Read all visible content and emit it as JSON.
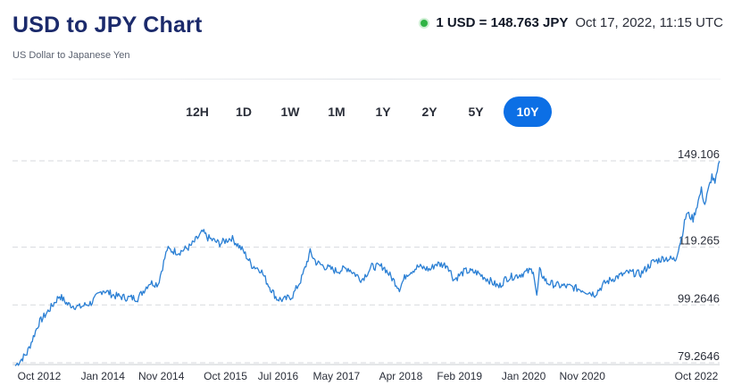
{
  "header": {
    "title": "USD to JPY Chart",
    "subtitle": "US Dollar to Japanese Yen",
    "rate": "1 USD = 148.763 JPY",
    "timestamp": "Oct 17, 2022, 11:15 UTC"
  },
  "ranges": {
    "options": [
      "12H",
      "1D",
      "1W",
      "1M",
      "1Y",
      "2Y",
      "5Y",
      "10Y"
    ],
    "selected": "10Y"
  },
  "colors": {
    "line": "#2a7fd4",
    "active_range": "#0c6fe5",
    "live_dot": "#2fb344",
    "title": "#1b2a6b"
  },
  "chart_data": {
    "type": "line",
    "title": "",
    "xlabel": "",
    "ylabel": "",
    "ylim": [
      79.2646,
      149.106
    ],
    "y_ticks": [
      {
        "value": 79.2646,
        "label": "79.2646"
      },
      {
        "value": 99.2646,
        "label": "99.2646"
      },
      {
        "value": 119.265,
        "label": "119.265"
      },
      {
        "value": 149.106,
        "label": "149.106"
      }
    ],
    "x_range": [
      "2012-10-01",
      "2022-10-17"
    ],
    "x_ticks": [
      {
        "date": "2012-10-01",
        "label": "Oct 2012"
      },
      {
        "date": "2014-01-01",
        "label": "Jan 2014"
      },
      {
        "date": "2014-11-01",
        "label": "Nov 2014"
      },
      {
        "date": "2015-10-01",
        "label": "Oct 2015"
      },
      {
        "date": "2016-07-01",
        "label": "Jul 2016"
      },
      {
        "date": "2017-05-01",
        "label": "May 2017"
      },
      {
        "date": "2018-04-01",
        "label": "Apr 2018"
      },
      {
        "date": "2019-02-01",
        "label": "Feb 2019"
      },
      {
        "date": "2020-01-01",
        "label": "Jan 2020"
      },
      {
        "date": "2020-11-01",
        "label": "Nov 2020"
      },
      {
        "date": "2022-10-01",
        "label": "Oct 2022"
      }
    ],
    "grid": true,
    "series": [
      {
        "x": [
          "2012-10-01",
          "2012-12-01",
          "2013-02-01",
          "2013-04-01",
          "2013-05-20",
          "2013-07-01",
          "2013-09-01",
          "2013-11-01",
          "2014-01-01",
          "2014-03-01",
          "2014-05-01",
          "2014-07-01",
          "2014-09-01",
          "2014-10-15",
          "2014-12-01",
          "2015-02-01",
          "2015-04-01",
          "2015-06-05",
          "2015-07-01",
          "2015-09-01",
          "2015-11-01",
          "2016-01-01",
          "2016-02-15",
          "2016-04-01",
          "2016-05-01",
          "2016-06-24",
          "2016-08-01",
          "2016-09-15",
          "2016-11-01",
          "2016-12-15",
          "2017-01-15",
          "2017-03-01",
          "2017-05-01",
          "2017-07-01",
          "2017-09-10",
          "2017-11-01",
          "2018-01-01",
          "2018-03-25",
          "2018-05-01",
          "2018-07-01",
          "2018-09-01",
          "2018-10-01",
          "2018-12-01",
          "2019-01-03",
          "2019-03-01",
          "2019-05-01",
          "2019-07-01",
          "2019-08-25",
          "2019-10-01",
          "2019-12-01",
          "2020-02-20",
          "2020-03-09",
          "2020-03-24",
          "2020-05-01",
          "2020-07-01",
          "2020-09-01",
          "2020-11-01",
          "2021-01-05",
          "2021-03-01",
          "2021-05-01",
          "2021-07-01",
          "2021-09-01",
          "2021-11-01",
          "2022-01-01",
          "2022-02-15",
          "2022-03-01",
          "2022-04-01",
          "2022-04-28",
          "2022-06-01",
          "2022-07-14",
          "2022-08-01",
          "2022-09-07",
          "2022-09-23",
          "2022-10-17"
        ],
        "y": [
          78.2,
          82.5,
          93.0,
          98.0,
          102.5,
          99.5,
          98.5,
          100.0,
          104.5,
          102.5,
          101.8,
          101.6,
          107.0,
          106.5,
          118.5,
          117.5,
          119.5,
          124.5,
          122.5,
          120.5,
          122.5,
          118.0,
          113.0,
          111.5,
          107.5,
          101.5,
          101.0,
          102.5,
          108.5,
          117.5,
          114.0,
          112.5,
          111.0,
          112.0,
          108.0,
          112.5,
          112.5,
          105.0,
          110.0,
          112.5,
          111.5,
          113.5,
          113.0,
          108.0,
          111.0,
          110.5,
          108.0,
          105.5,
          108.5,
          109.5,
          111.5,
          102.0,
          111.0,
          107.0,
          106.0,
          105.5,
          104.5,
          103.0,
          107.0,
          109.0,
          110.5,
          110.0,
          114.0,
          115.5,
          115.0,
          115.0,
          122.5,
          131.0,
          129.0,
          139.0,
          134.0,
          144.0,
          141.0,
          149.0
        ]
      }
    ]
  }
}
